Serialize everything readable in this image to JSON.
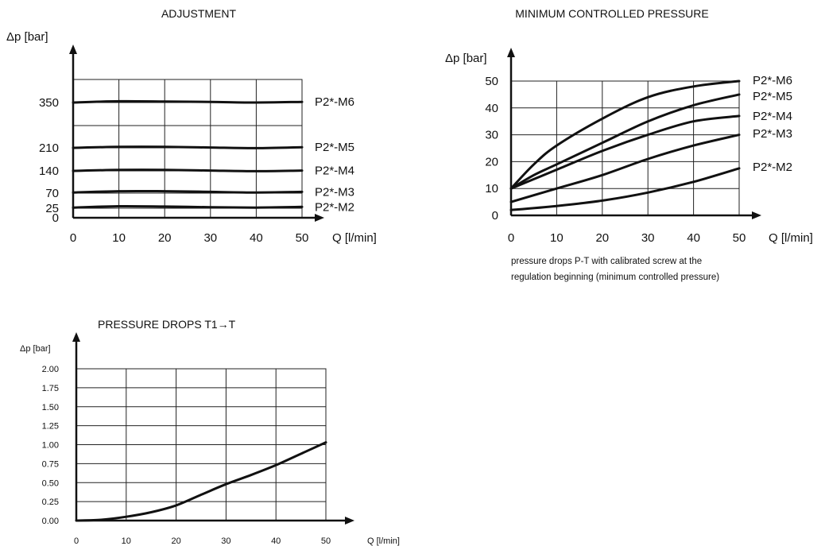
{
  "chart_data": [
    {
      "type": "line",
      "title": "ADJUSTMENT",
      "xlabel": "Q [l/min]",
      "ylabel": "Δp [bar]",
      "xlim": [
        0,
        50
      ],
      "x_ticks": [
        0,
        10,
        20,
        30,
        40,
        50
      ],
      "y_ticks": [
        0,
        25,
        70,
        140,
        210,
        350
      ],
      "grid": true,
      "series": [
        {
          "name": "P2*-M6",
          "x": [
            0,
            10,
            20,
            30,
            40,
            50
          ],
          "y": [
            350,
            354,
            353,
            352,
            350,
            352
          ]
        },
        {
          "name": "P2*-M5",
          "x": [
            0,
            10,
            20,
            30,
            40,
            50
          ],
          "y": [
            210,
            213,
            213,
            211,
            209,
            212
          ]
        },
        {
          "name": "P2*-M4",
          "x": [
            0,
            10,
            20,
            30,
            40,
            50
          ],
          "y": [
            140,
            143,
            143,
            141,
            139,
            141
          ]
        },
        {
          "name": "P2*-M3",
          "x": [
            0,
            10,
            20,
            30,
            40,
            50
          ],
          "y": [
            72,
            76,
            76,
            74,
            72,
            74
          ]
        },
        {
          "name": "P2*-M2",
          "x": [
            0,
            10,
            20,
            30,
            40,
            50
          ],
          "y": [
            27,
            31,
            30,
            28,
            27,
            29
          ]
        }
      ]
    },
    {
      "type": "line",
      "title": "MINIMUM CONTROLLED PRESSURE",
      "xlabel": "Q [l/min]",
      "ylabel": "Δp [bar]",
      "xlim": [
        0,
        50
      ],
      "ylim": [
        0,
        50
      ],
      "x_ticks": [
        0,
        10,
        20,
        30,
        40,
        50
      ],
      "y_ticks": [
        0,
        10,
        20,
        30,
        40,
        50
      ],
      "grid": true,
      "caption": [
        "pressure drops P-T with calibrated screw at  the",
        "regulation beginning (minimum controlled pressure)"
      ],
      "series": [
        {
          "name": "P2*-M6",
          "x": [
            0,
            5,
            10,
            20,
            30,
            40,
            50
          ],
          "y": [
            10,
            19,
            26,
            36,
            44,
            48,
            50
          ]
        },
        {
          "name": "P2*-M5",
          "x": [
            0,
            5,
            10,
            20,
            30,
            40,
            50
          ],
          "y": [
            10,
            15,
            19,
            27,
            35,
            41,
            45
          ]
        },
        {
          "name": "P2*-M4",
          "x": [
            0,
            5,
            10,
            20,
            30,
            40,
            50
          ],
          "y": [
            10,
            13.5,
            17,
            24,
            30,
            35,
            37
          ]
        },
        {
          "name": "P2*-M3",
          "x": [
            0,
            10,
            20,
            30,
            40,
            50
          ],
          "y": [
            5,
            10,
            15,
            21,
            26,
            30
          ]
        },
        {
          "name": "P2*-M2",
          "x": [
            0,
            10,
            20,
            30,
            40,
            50
          ],
          "y": [
            2,
            3.5,
            5.5,
            8.5,
            12.5,
            17.5
          ]
        }
      ]
    },
    {
      "type": "line",
      "title": "PRESSURE DROPS  T1→T",
      "xlabel": "Q [l/min]",
      "ylabel": "Δp [bar]",
      "xlim": [
        0,
        50
      ],
      "ylim": [
        0,
        2
      ],
      "x_ticks": [
        0,
        10,
        20,
        30,
        40,
        50
      ],
      "y_ticks": [
        "0.00",
        "0.25",
        "0.50",
        "0.75",
        "1.00",
        "1.25",
        "1.50",
        "1.75",
        "2.00"
      ],
      "grid": true,
      "series": [
        {
          "name": "",
          "x": [
            0,
            5,
            10,
            15,
            20,
            25,
            30,
            35,
            40,
            45,
            50
          ],
          "y": [
            0,
            0.01,
            0.05,
            0.11,
            0.2,
            0.34,
            0.48,
            0.6,
            0.73,
            0.88,
            1.03
          ]
        }
      ]
    }
  ]
}
